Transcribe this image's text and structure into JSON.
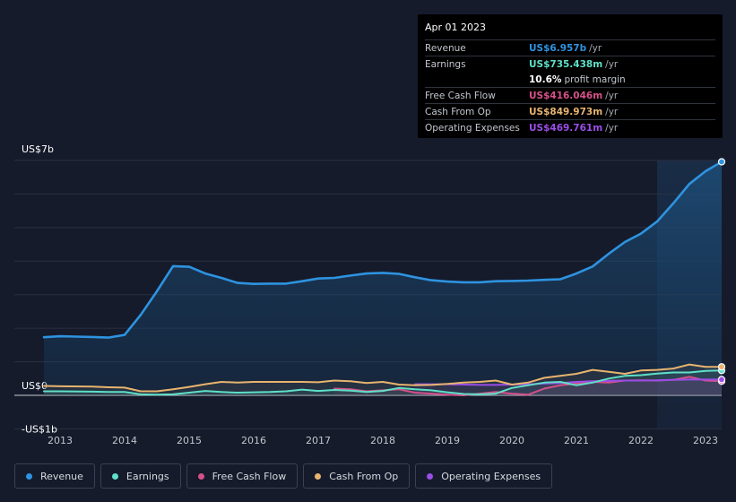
{
  "colors": {
    "background": "#151b2b",
    "revenue": "#2e93e0",
    "earnings": "#5fe0c8",
    "free_cash_flow": "#d6508a",
    "cash_from_op": "#e8b46e",
    "operating_expenses": "#9b4de8",
    "grid": "#2a3142",
    "highlight": "#1b2f48"
  },
  "tooltip": {
    "date": "Apr 01 2023",
    "revenue_label": "Revenue",
    "revenue_value": "US$6.957b",
    "earnings_label": "Earnings",
    "earnings_value": "US$735.438m",
    "profit_margin_pct": "10.6%",
    "profit_margin_label": "profit margin",
    "fcf_label": "Free Cash Flow",
    "fcf_value": "US$416.046m",
    "cfo_label": "Cash From Op",
    "cfo_value": "US$849.973m",
    "opex_label": "Operating Expenses",
    "opex_value": "US$469.761m",
    "unit": "/yr"
  },
  "legend": {
    "revenue": "Revenue",
    "earnings": "Earnings",
    "free_cash_flow": "Free Cash Flow",
    "cash_from_op": "Cash From Op",
    "operating_expenses": "Operating Expenses"
  },
  "chart_data": {
    "type": "area",
    "title": "",
    "xlabel": "",
    "ylabel": "",
    "y_tick_labels": [
      "US$7b",
      "US$0",
      "-US$1b"
    ],
    "y_ticks": [
      7,
      0,
      -1
    ],
    "ylim": [
      -1,
      7
    ],
    "x_tick_labels": [
      "2013",
      "2014",
      "2015",
      "2016",
      "2017",
      "2018",
      "2019",
      "2020",
      "2021",
      "2022",
      "2023"
    ],
    "x_ticks": [
      2013,
      2014,
      2015,
      2016,
      2017,
      2018,
      2019,
      2020,
      2021,
      2022,
      2023
    ],
    "xlim": [
      2012.3,
      2023.25
    ],
    "highlight_start": 2022.25,
    "grid": true,
    "legend_position": "bottom-left",
    "series": [
      {
        "name": "Revenue",
        "key": "revenue",
        "x": [
          2012.75,
          2013.0,
          2013.25,
          2013.5,
          2013.75,
          2014.0,
          2014.25,
          2014.5,
          2014.75,
          2015.0,
          2015.25,
          2015.5,
          2015.75,
          2016.0,
          2016.25,
          2016.5,
          2016.75,
          2017.0,
          2017.25,
          2017.5,
          2017.75,
          2018.0,
          2018.25,
          2018.5,
          2018.75,
          2019.0,
          2019.25,
          2019.5,
          2019.75,
          2020.0,
          2020.25,
          2020.5,
          2020.75,
          2021.0,
          2021.25,
          2021.5,
          2021.75,
          2022.0,
          2022.25,
          2022.5,
          2022.75,
          2023.0,
          2023.25
        ],
        "values": [
          1.73,
          1.76,
          1.75,
          1.74,
          1.72,
          1.8,
          2.4,
          3.1,
          3.85,
          3.83,
          3.63,
          3.5,
          3.35,
          3.32,
          3.33,
          3.33,
          3.4,
          3.48,
          3.5,
          3.57,
          3.63,
          3.65,
          3.62,
          3.52,
          3.43,
          3.39,
          3.37,
          3.37,
          3.4,
          3.41,
          3.42,
          3.44,
          3.46,
          3.63,
          3.84,
          4.22,
          4.57,
          4.82,
          5.18,
          5.72,
          6.3,
          6.68,
          6.96
        ]
      },
      {
        "name": "Earnings",
        "key": "earnings",
        "x": [
          2012.75,
          2013.0,
          2013.5,
          2013.75,
          2014.0,
          2014.25,
          2014.5,
          2014.75,
          2015.0,
          2015.25,
          2015.5,
          2015.75,
          2016.0,
          2016.25,
          2016.5,
          2016.75,
          2017.0,
          2017.25,
          2017.5,
          2017.75,
          2018.0,
          2018.25,
          2018.5,
          2018.75,
          2019.0,
          2019.25,
          2019.5,
          2019.75,
          2020.0,
          2020.25,
          2020.5,
          2020.75,
          2021.0,
          2021.25,
          2021.5,
          2021.75,
          2022.0,
          2022.25,
          2022.5,
          2022.75,
          2023.0,
          2023.25
        ],
        "values": [
          0.12,
          0.12,
          0.11,
          0.1,
          0.1,
          0.03,
          0.02,
          0.03,
          0.08,
          0.13,
          0.1,
          0.08,
          0.09,
          0.1,
          0.12,
          0.17,
          0.13,
          0.16,
          0.14,
          0.1,
          0.13,
          0.22,
          0.18,
          0.15,
          0.09,
          0.04,
          0.03,
          0.05,
          0.22,
          0.3,
          0.38,
          0.4,
          0.3,
          0.38,
          0.5,
          0.58,
          0.6,
          0.65,
          0.68,
          0.68,
          0.73,
          0.74
        ]
      },
      {
        "name": "Free Cash Flow",
        "key": "free_cash_flow",
        "x": [
          2017.25,
          2017.5,
          2017.75,
          2018.0,
          2018.25,
          2018.5,
          2018.75,
          2019.0,
          2019.25,
          2019.5,
          2019.75,
          2020.0,
          2020.25,
          2020.5,
          2020.75,
          2021.0,
          2021.25,
          2021.5,
          2021.75,
          2022.0,
          2022.25,
          2022.5,
          2022.75,
          2023.0,
          2023.25
        ],
        "values": [
          0.2,
          0.18,
          0.12,
          0.15,
          0.18,
          0.08,
          0.05,
          0.02,
          0.0,
          0.05,
          0.1,
          0.05,
          0.02,
          0.2,
          0.3,
          0.35,
          0.4,
          0.38,
          0.44,
          0.45,
          0.44,
          0.46,
          0.55,
          0.44,
          0.42
        ]
      },
      {
        "name": "Cash From Op",
        "key": "cash_from_op",
        "x": [
          2012.75,
          2013.0,
          2013.5,
          2013.75,
          2014.0,
          2014.25,
          2014.5,
          2014.75,
          2015.0,
          2015.25,
          2015.5,
          2015.75,
          2016.0,
          2016.25,
          2016.5,
          2016.75,
          2017.0,
          2017.25,
          2017.5,
          2017.75,
          2018.0,
          2018.25,
          2018.5,
          2018.75,
          2019.0,
          2019.25,
          2019.5,
          2019.75,
          2020.0,
          2020.25,
          2020.5,
          2020.75,
          2021.0,
          2021.25,
          2021.5,
          2021.75,
          2022.0,
          2022.25,
          2022.5,
          2022.75,
          2023.0,
          2023.25
        ],
        "values": [
          0.28,
          0.27,
          0.26,
          0.24,
          0.23,
          0.12,
          0.12,
          0.18,
          0.25,
          0.33,
          0.4,
          0.38,
          0.4,
          0.4,
          0.4,
          0.4,
          0.39,
          0.44,
          0.42,
          0.37,
          0.4,
          0.32,
          0.3,
          0.31,
          0.34,
          0.38,
          0.4,
          0.44,
          0.32,
          0.38,
          0.52,
          0.58,
          0.64,
          0.76,
          0.7,
          0.64,
          0.74,
          0.76,
          0.8,
          0.92,
          0.85,
          0.85
        ]
      },
      {
        "name": "Operating Expenses",
        "key": "operating_expenses",
        "x": [
          2018.5,
          2018.75,
          2019.0,
          2019.25,
          2019.5,
          2019.75,
          2020.0,
          2020.25,
          2020.5,
          2020.75,
          2021.0,
          2021.25,
          2021.5,
          2021.75,
          2022.0,
          2022.25,
          2022.5,
          2022.75,
          2023.0,
          2023.25
        ],
        "values": [
          0.33,
          0.33,
          0.33,
          0.32,
          0.31,
          0.31,
          0.32,
          0.33,
          0.35,
          0.37,
          0.4,
          0.42,
          0.43,
          0.44,
          0.44,
          0.45,
          0.46,
          0.47,
          0.47,
          0.47
        ]
      }
    ]
  }
}
